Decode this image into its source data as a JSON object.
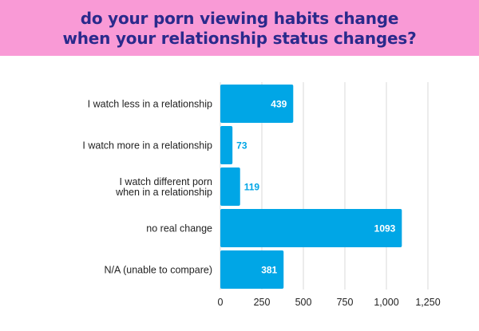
{
  "header": {
    "title_line1": "do your porn viewing habits change",
    "title_line2": "when your relationship status changes?"
  },
  "colors": {
    "banner": "#f99ad6",
    "title": "#2a2a8c",
    "bar": "#00a6e6",
    "label_inside": "#ffffff",
    "label_outside": "#00a6e6"
  },
  "chart_data": {
    "type": "bar",
    "orientation": "horizontal",
    "categories": [
      [
        "I watch less in a relationship"
      ],
      [
        "I watch more in a relationship"
      ],
      [
        "I watch different porn",
        "when in a relationship"
      ],
      [
        "no real change"
      ],
      [
        "N/A (unable to compare)"
      ]
    ],
    "values": [
      439,
      73,
      119,
      1093,
      381
    ],
    "xlim": [
      0,
      1250
    ],
    "x_ticks": [
      0,
      250,
      500,
      750,
      1000,
      1250
    ],
    "x_tick_labels": [
      "0",
      "250",
      "500",
      "750",
      "1,000",
      "1,250"
    ],
    "grid": true,
    "title": "",
    "xlabel": "",
    "ylabel": ""
  }
}
